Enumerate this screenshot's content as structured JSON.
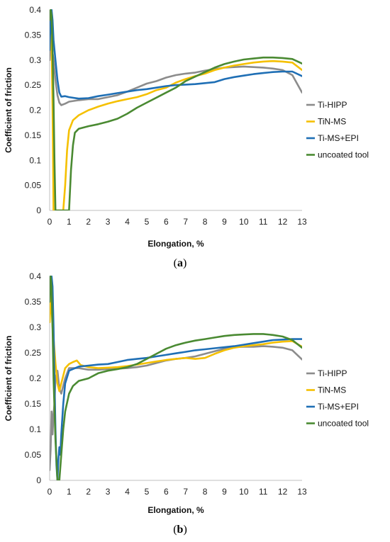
{
  "chart_data": [
    {
      "type": "line",
      "panel": "a",
      "xlabel": "Elongation, %",
      "ylabel": "Coefficient of friction",
      "xlim": [
        0,
        13
      ],
      "ylim": [
        0,
        0.4
      ],
      "xticks": [
        0,
        1,
        2,
        3,
        4,
        5,
        6,
        7,
        8,
        9,
        10,
        11,
        12,
        13
      ],
      "yticks": [
        0,
        0.05,
        0.1,
        0.15,
        0.2,
        0.25,
        0.3,
        0.35,
        0.4
      ],
      "ytick_labels": [
        "0",
        "0.05",
        "0.1",
        "0.15",
        "0.2",
        "0.25",
        "0.3",
        "0.35",
        "0.4"
      ],
      "legend_position": "right",
      "grid": false,
      "series": [
        {
          "name": "Ti-HIPP",
          "color": "#8c8c8c",
          "x": [
            0,
            0.05,
            0.1,
            0.2,
            0.3,
            0.4,
            0.5,
            0.6,
            0.8,
            1,
            1.5,
            2,
            2.5,
            3,
            3.5,
            4,
            4.5,
            5,
            5.5,
            6,
            6.5,
            7,
            7.5,
            8,
            8.5,
            9,
            9.5,
            10,
            10.5,
            11,
            11.5,
            12,
            12.5,
            13
          ],
          "y": [
            0.3,
            0.36,
            0.33,
            0.3,
            0.26,
            0.23,
            0.215,
            0.21,
            0.213,
            0.217,
            0.22,
            0.222,
            0.222,
            0.226,
            0.23,
            0.237,
            0.245,
            0.253,
            0.258,
            0.265,
            0.27,
            0.273,
            0.275,
            0.279,
            0.282,
            0.285,
            0.286,
            0.287,
            0.286,
            0.285,
            0.283,
            0.28,
            0.27,
            0.235
          ]
        },
        {
          "name": "TiN-MS",
          "color": "#f5c000",
          "x": [
            0,
            0.05,
            0.1,
            0.15,
            0.2,
            0.3,
            0.5,
            0.7,
            0.8,
            0.9,
            1,
            1.2,
            1.5,
            2,
            2.5,
            3,
            3.5,
            4,
            4.5,
            5,
            5.5,
            6,
            6.5,
            7,
            7.5,
            8,
            8.5,
            9,
            9.5,
            10,
            10.5,
            11,
            11.5,
            12,
            12.5,
            13
          ],
          "y": [
            0.32,
            0.35,
            0.34,
            0.2,
            0,
            0,
            0,
            0,
            0.05,
            0.12,
            0.16,
            0.18,
            0.19,
            0.2,
            0.207,
            0.213,
            0.218,
            0.222,
            0.226,
            0.232,
            0.24,
            0.245,
            0.255,
            0.262,
            0.268,
            0.273,
            0.28,
            0.285,
            0.289,
            0.292,
            0.295,
            0.297,
            0.298,
            0.297,
            0.295,
            0.28
          ]
        },
        {
          "name": "Ti-MS+EPI",
          "color": "#1f6fb5",
          "x": [
            0,
            0.05,
            0.1,
            0.15,
            0.2,
            0.3,
            0.4,
            0.5,
            0.6,
            0.8,
            1,
            1.5,
            2,
            2.5,
            3,
            3.5,
            4,
            4.5,
            5,
            5.5,
            6,
            6.5,
            7,
            7.5,
            8,
            8.5,
            9,
            9.5,
            10,
            10.5,
            11,
            11.5,
            12,
            12.5,
            13
          ],
          "y": [
            0.32,
            0.39,
            0.4,
            0.38,
            0.34,
            0.3,
            0.26,
            0.235,
            0.227,
            0.228,
            0.226,
            0.223,
            0.224,
            0.228,
            0.231,
            0.234,
            0.237,
            0.24,
            0.242,
            0.245,
            0.248,
            0.25,
            0.251,
            0.252,
            0.254,
            0.256,
            0.262,
            0.266,
            0.269,
            0.272,
            0.274,
            0.276,
            0.277,
            0.277,
            0.268
          ]
        },
        {
          "name": "uncoated tool",
          "color": "#4a8a32",
          "x": [
            0,
            0.05,
            0.1,
            0.15,
            0.2,
            0.25,
            0.3,
            0.5,
            0.8,
            1,
            1.1,
            1.2,
            1.3,
            1.5,
            2,
            2.5,
            3,
            3.5,
            4,
            4.5,
            5,
            5.5,
            6,
            6.5,
            7,
            7.5,
            8,
            8.5,
            9,
            9.5,
            10,
            10.5,
            11,
            11.5,
            12,
            12.5,
            13
          ],
          "y": [
            0.38,
            0.4,
            0.39,
            0.32,
            0.22,
            0.1,
            0,
            0,
            0,
            0,
            0.08,
            0.13,
            0.155,
            0.163,
            0.168,
            0.172,
            0.177,
            0.183,
            0.193,
            0.205,
            0.215,
            0.225,
            0.235,
            0.245,
            0.258,
            0.267,
            0.276,
            0.285,
            0.292,
            0.297,
            0.301,
            0.303,
            0.305,
            0.305,
            0.304,
            0.302,
            0.293
          ]
        }
      ],
      "caption": "a"
    },
    {
      "type": "line",
      "panel": "b",
      "xlabel": "Elongation, %",
      "ylabel": "Coefficient of friction",
      "xlim": [
        0,
        13
      ],
      "ylim": [
        0,
        0.4
      ],
      "xticks": [
        0,
        1,
        2,
        3,
        4,
        5,
        6,
        7,
        8,
        9,
        10,
        11,
        12,
        13
      ],
      "yticks": [
        0,
        0.05,
        0.1,
        0.15,
        0.2,
        0.25,
        0.3,
        0.35,
        0.4
      ],
      "ytick_labels": [
        "0",
        "0.05",
        "0.1",
        "0.15",
        "0.2",
        "0.25",
        "0.3",
        "0.35",
        "0.4"
      ],
      "legend_position": "right",
      "grid": false,
      "series": [
        {
          "name": "Ti-HIPP",
          "color": "#8c8c8c",
          "x": [
            0,
            0.05,
            0.1,
            0.15,
            0.2,
            0.25,
            0.3,
            0.4,
            0.5,
            0.6,
            0.8,
            1,
            1.5,
            2,
            2.5,
            3,
            3.5,
            4,
            4.5,
            5,
            5.5,
            6,
            6.5,
            7,
            7.5,
            8,
            8.5,
            9,
            9.5,
            10,
            10.5,
            11,
            11.5,
            12,
            12.5,
            13
          ],
          "y": [
            0.02,
            0.06,
            0.135,
            0.09,
            0.13,
            0.15,
            0.2,
            0.215,
            0.18,
            0.17,
            0.2,
            0.22,
            0.22,
            0.217,
            0.217,
            0.218,
            0.219,
            0.22,
            0.222,
            0.225,
            0.23,
            0.235,
            0.238,
            0.24,
            0.243,
            0.248,
            0.253,
            0.258,
            0.261,
            0.262,
            0.262,
            0.263,
            0.262,
            0.26,
            0.255,
            0.237
          ]
        },
        {
          "name": "TiN-MS",
          "color": "#f5c000",
          "x": [
            0,
            0.05,
            0.1,
            0.15,
            0.2,
            0.3,
            0.4,
            0.5,
            0.6,
            0.8,
            1,
            1.2,
            1.4,
            1.6,
            2,
            2.5,
            3,
            3.5,
            4,
            4.5,
            5,
            5.5,
            6,
            6.5,
            7,
            7.5,
            8,
            8.5,
            9,
            9.5,
            10,
            10.5,
            11,
            11.5,
            12,
            12.5,
            13
          ],
          "y": [
            0.31,
            0.36,
            0.34,
            0.3,
            0.28,
            0.23,
            0.19,
            0.175,
            0.19,
            0.22,
            0.228,
            0.232,
            0.235,
            0.226,
            0.222,
            0.22,
            0.221,
            0.222,
            0.224,
            0.227,
            0.23,
            0.233,
            0.236,
            0.238,
            0.24,
            0.238,
            0.24,
            0.248,
            0.255,
            0.26,
            0.263,
            0.265,
            0.267,
            0.27,
            0.272,
            0.273,
            0.262
          ]
        },
        {
          "name": "Ti-MS+EPI",
          "color": "#1f6fb5",
          "x": [
            0,
            0.1,
            0.15,
            0.2,
            0.25,
            0.3,
            0.35,
            0.4,
            0.45,
            0.5,
            0.55,
            0.6,
            0.7,
            0.8,
            1,
            1.5,
            2,
            2.5,
            3,
            3.5,
            4,
            4.5,
            5,
            5.5,
            6,
            6.5,
            7,
            7.5,
            8,
            8.5,
            9,
            9.5,
            10,
            10.5,
            11,
            11.5,
            12,
            12.5,
            13
          ],
          "y": [
            0.4,
            0.4,
            0.38,
            0.3,
            0.2,
            0.1,
            0.03,
            0,
            0.04,
            0.065,
            0.05,
            0.09,
            0.15,
            0.19,
            0.215,
            0.223,
            0.225,
            0.227,
            0.228,
            0.232,
            0.236,
            0.238,
            0.24,
            0.243,
            0.246,
            0.249,
            0.252,
            0.255,
            0.257,
            0.259,
            0.261,
            0.263,
            0.266,
            0.269,
            0.272,
            0.275,
            0.276,
            0.277,
            0.277
          ]
        },
        {
          "name": "uncoated tool",
          "color": "#4a8a32",
          "x": [
            0,
            0.05,
            0.1,
            0.15,
            0.2,
            0.3,
            0.4,
            0.5,
            0.6,
            0.7,
            0.8,
            1,
            1.2,
            1.5,
            2,
            2.5,
            3,
            3.5,
            4,
            4.5,
            5,
            5.5,
            6,
            6.5,
            7,
            7.5,
            8,
            8.5,
            9,
            9.5,
            10,
            10.5,
            11,
            11.5,
            12,
            12.5,
            13
          ],
          "y": [
            0.35,
            0.4,
            0.38,
            0.3,
            0.2,
            0.08,
            0,
            0,
            0.05,
            0.1,
            0.135,
            0.17,
            0.185,
            0.195,
            0.2,
            0.21,
            0.215,
            0.218,
            0.222,
            0.228,
            0.238,
            0.248,
            0.258,
            0.265,
            0.27,
            0.274,
            0.277,
            0.28,
            0.283,
            0.285,
            0.286,
            0.287,
            0.287,
            0.285,
            0.282,
            0.275,
            0.26
          ]
        }
      ],
      "caption": "b"
    }
  ]
}
